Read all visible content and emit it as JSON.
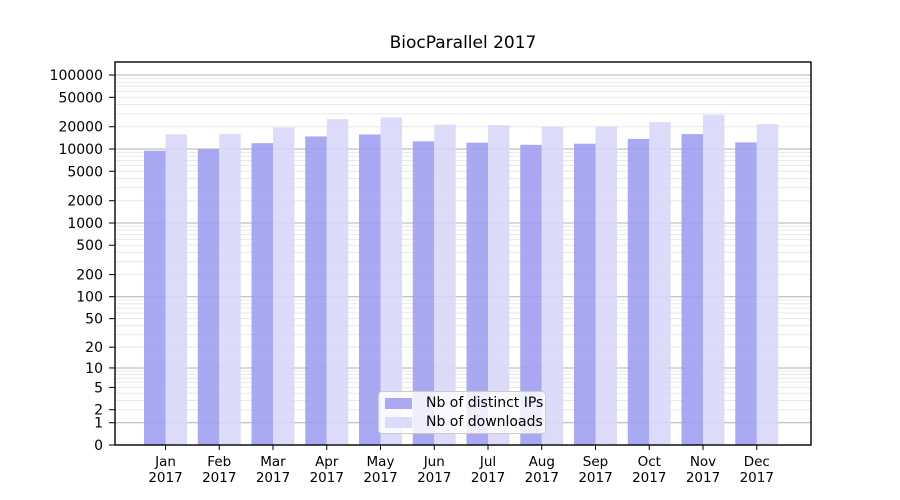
{
  "chart_data": {
    "type": "bar",
    "title": "BiocParallel 2017",
    "categories": [
      "Jan",
      "Feb",
      "Mar",
      "Apr",
      "May",
      "Jun",
      "Jul",
      "Aug",
      "Sep",
      "Oct",
      "Nov",
      "Dec"
    ],
    "year_label": "2017",
    "series": [
      {
        "name": "Nb of distinct IPs",
        "color": "#9f9ff2",
        "values": [
          9500,
          9900,
          12000,
          14800,
          15700,
          12700,
          12200,
          11400,
          11800,
          13700,
          15900,
          12300
        ]
      },
      {
        "name": "Nb of downloads",
        "color": "#d8d8fa",
        "values": [
          15800,
          16000,
          19500,
          25400,
          26700,
          21300,
          21000,
          20000,
          20200,
          23100,
          29000,
          21700
        ]
      }
    ],
    "yscale": "log10(1+v)",
    "ylim": [
      0,
      150000
    ],
    "ytick_labels": [
      100000,
      50000,
      20000,
      10000,
      5000,
      2000,
      1000,
      500,
      200,
      100,
      50,
      20,
      10,
      5,
      2,
      1,
      0
    ],
    "xlabel": "",
    "ylabel": "",
    "grid": true,
    "legend_position": "lower center",
    "colors": {
      "major_grid": "#b0b0b0",
      "minor_grid": "#e8e8e8",
      "axis": "#000000",
      "background": "#ffffff",
      "text": "#000000"
    }
  }
}
